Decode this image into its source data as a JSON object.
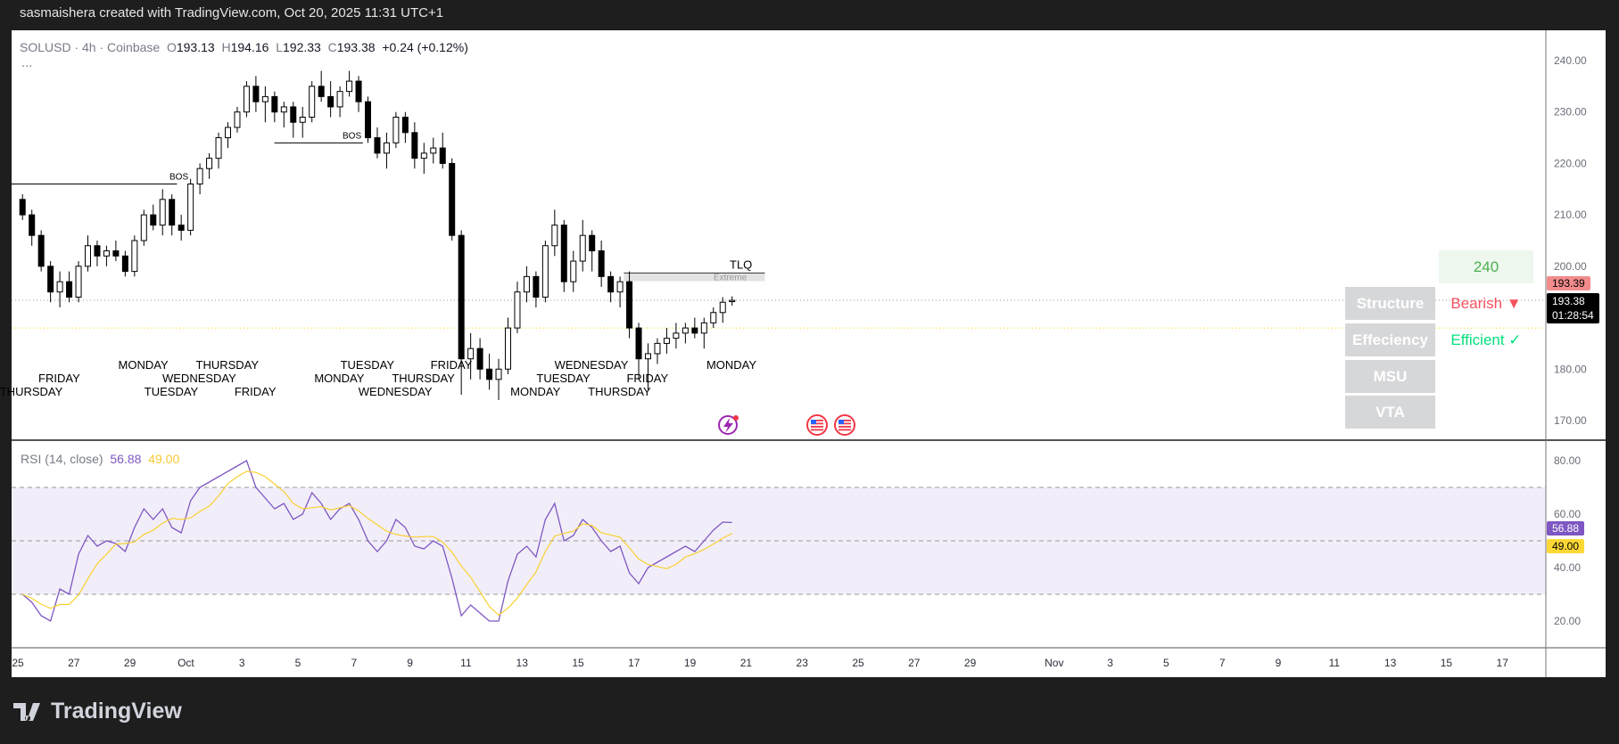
{
  "header": {
    "attribution": "sasmaishera created with TradingView.com, Oct 20, 2025 11:31 UTC+1"
  },
  "legend": {
    "symbol": "SOLUSD · 4h · Coinbase",
    "o_label": "O",
    "o": "193.13",
    "h_label": "H",
    "h": "194.16",
    "l_label": "L",
    "l": "192.33",
    "c_label": "C",
    "c": "193.38",
    "change": "+0.24 (+0.12%)",
    "more": "..."
  },
  "rsi": {
    "label": "RSI (14, close)",
    "value": "56.88",
    "ma_value": "49.00",
    "color": "#7e57c2",
    "ma_color": "#f9d030"
  },
  "annotations": {
    "bos1": "BOS",
    "bos2": "BOS",
    "tlq": "TLQ",
    "extreme": "Extreme"
  },
  "table": {
    "tf": "240",
    "rows": [
      {
        "label": "Structure",
        "value": "Bearish ▼",
        "color": "#f7525f"
      },
      {
        "label": "Effeciency",
        "value": "Efficient ✓",
        "color": "#00e07a"
      },
      {
        "label": "MSU",
        "value": ""
      },
      {
        "label": "VTA",
        "value": ""
      }
    ]
  },
  "price_axis": {
    "ticks": [
      "240.00",
      "230.00",
      "220.00",
      "210.00",
      "200.00",
      "180.00",
      "170.00"
    ],
    "high_badge": "193.39",
    "last_price": "193.38",
    "countdown": "01:28:54"
  },
  "rsi_axis": {
    "ticks": [
      "80.00",
      "60.00",
      "40.00",
      "20.00"
    ]
  },
  "icons": [
    "lightning-event-icon",
    "us-flag-icon",
    "us-flag-icon"
  ],
  "brand": {
    "name": "TradingView"
  },
  "weekday_labels": [
    {
      "text": "THURSDAY",
      "date": "2025-09-25"
    },
    {
      "text": "FRIDAY",
      "date": "2025-09-26"
    },
    {
      "text": "MONDAY",
      "date": "2025-09-29"
    },
    {
      "text": "TUESDAY",
      "date": "2025-09-30"
    },
    {
      "text": "WEDNESDAY",
      "date": "2025-10-01"
    },
    {
      "text": "THURSDAY",
      "date": "2025-10-02"
    },
    {
      "text": "FRIDAY",
      "date": "2025-10-03"
    },
    {
      "text": "MONDAY",
      "date": "2025-10-06"
    },
    {
      "text": "TUESDAY",
      "date": "2025-10-07"
    },
    {
      "text": "WEDNESDAY",
      "date": "2025-10-08"
    },
    {
      "text": "THURSDAY",
      "date": "2025-10-09"
    },
    {
      "text": "FRIDAY",
      "date": "2025-10-10"
    },
    {
      "text": "MONDAY",
      "date": "2025-10-13"
    },
    {
      "text": "TUESDAY",
      "date": "2025-10-14"
    },
    {
      "text": "WEDNESDAY",
      "date": "2025-10-15"
    },
    {
      "text": "THURSDAY",
      "date": "2025-10-16"
    },
    {
      "text": "FRIDAY",
      "date": "2025-10-17"
    },
    {
      "text": "MONDAY",
      "date": "2025-10-20"
    }
  ],
  "chart_data": {
    "type": "candlestick",
    "x_ticks": [
      {
        "label": "25",
        "date": "2025-09-25"
      },
      {
        "label": "27",
        "date": "2025-09-27"
      },
      {
        "label": "29",
        "date": "2025-09-29"
      },
      {
        "label": "Oct",
        "date": "2025-10-01"
      },
      {
        "label": "3",
        "date": "2025-10-03"
      },
      {
        "label": "5",
        "date": "2025-10-05"
      },
      {
        "label": "7",
        "date": "2025-10-07"
      },
      {
        "label": "9",
        "date": "2025-10-09"
      },
      {
        "label": "11",
        "date": "2025-10-11"
      },
      {
        "label": "13",
        "date": "2025-10-13"
      },
      {
        "label": "15",
        "date": "2025-10-15"
      },
      {
        "label": "17",
        "date": "2025-10-17"
      },
      {
        "label": "19",
        "date": "2025-10-19"
      },
      {
        "label": "21",
        "date": "2025-10-21"
      },
      {
        "label": "23",
        "date": "2025-10-23"
      },
      {
        "label": "25",
        "date": "2025-10-25"
      },
      {
        "label": "27",
        "date": "2025-10-27"
      },
      {
        "label": "29",
        "date": "2025-10-29"
      },
      {
        "label": "Nov",
        "date": "2025-11-01"
      },
      {
        "label": "3",
        "date": "2025-11-03"
      },
      {
        "label": "5",
        "date": "2025-11-05"
      },
      {
        "label": "7",
        "date": "2025-11-07"
      },
      {
        "label": "9",
        "date": "2025-11-09"
      },
      {
        "label": "11",
        "date": "2025-11-11"
      },
      {
        "label": "13",
        "date": "2025-11-13"
      },
      {
        "label": "15",
        "date": "2025-11-15"
      },
      {
        "label": "17",
        "date": "2025-11-17"
      }
    ],
    "start": "2025-09-25",
    "candles_per_day": 3,
    "ylim": [
      170,
      240
    ],
    "ohlc": [
      [
        213,
        214,
        209,
        210
      ],
      [
        210,
        211,
        204,
        206
      ],
      [
        206,
        207,
        199,
        200
      ],
      [
        200,
        201,
        193,
        195
      ],
      [
        195,
        199,
        192,
        197
      ],
      [
        197,
        199,
        193,
        194
      ],
      [
        194,
        201,
        193,
        200
      ],
      [
        200,
        206,
        199,
        204
      ],
      [
        204,
        205,
        200,
        202
      ],
      [
        202,
        204,
        200,
        203
      ],
      [
        203,
        205,
        201,
        202
      ],
      [
        202,
        203,
        198,
        199
      ],
      [
        199,
        206,
        198,
        205
      ],
      [
        205,
        211,
        204,
        210
      ],
      [
        210,
        212,
        207,
        208
      ],
      [
        208,
        215,
        206,
        213
      ],
      [
        213,
        214,
        206,
        208
      ],
      [
        208,
        210,
        205,
        207
      ],
      [
        207,
        217,
        206,
        216
      ],
      [
        216,
        220,
        214,
        219
      ],
      [
        219,
        222,
        217,
        221
      ],
      [
        221,
        226,
        219,
        225
      ],
      [
        225,
        228,
        223,
        227
      ],
      [
        227,
        231,
        226,
        230
      ],
      [
        230,
        236,
        229,
        235
      ],
      [
        235,
        237,
        230,
        232
      ],
      [
        232,
        235,
        228,
        233
      ],
      [
        233,
        234,
        228,
        230
      ],
      [
        230,
        232,
        227,
        231
      ],
      [
        231,
        232,
        225,
        228
      ],
      [
        228,
        231,
        225,
        229
      ],
      [
        229,
        236,
        228,
        235
      ],
      [
        235,
        238,
        232,
        233
      ],
      [
        233,
        236,
        229,
        231
      ],
      [
        231,
        235,
        229,
        234
      ],
      [
        234,
        238,
        233,
        236
      ],
      [
        236,
        237,
        230,
        232
      ],
      [
        232,
        233,
        224,
        225
      ],
      [
        225,
        227,
        221,
        222
      ],
      [
        222,
        226,
        219,
        224
      ],
      [
        224,
        230,
        223,
        229
      ],
      [
        229,
        230,
        224,
        226
      ],
      [
        226,
        228,
        219,
        221
      ],
      [
        221,
        224,
        218,
        222
      ],
      [
        222,
        225,
        220,
        223
      ],
      [
        223,
        226,
        219,
        220
      ],
      [
        220,
        221,
        205,
        206
      ],
      [
        206,
        207,
        175,
        182
      ],
      [
        182,
        187,
        178,
        184
      ],
      [
        184,
        186,
        178,
        180
      ],
      [
        180,
        183,
        176,
        178
      ],
      [
        178,
        182,
        174,
        180
      ],
      [
        180,
        190,
        179,
        188
      ],
      [
        188,
        197,
        187,
        195
      ],
      [
        195,
        200,
        193,
        198
      ],
      [
        198,
        199,
        192,
        194
      ],
      [
        194,
        205,
        193,
        204
      ],
      [
        204,
        211,
        202,
        208
      ],
      [
        208,
        209,
        195,
        197
      ],
      [
        197,
        203,
        195,
        201
      ],
      [
        201,
        209,
        199,
        206
      ],
      [
        206,
        207,
        199,
        203
      ],
      [
        203,
        205,
        196,
        198
      ],
      [
        198,
        199,
        193,
        195
      ],
      [
        195,
        198,
        192,
        197
      ],
      [
        197,
        199,
        186,
        188
      ],
      [
        188,
        189,
        178,
        182
      ],
      [
        182,
        185,
        176,
        183
      ],
      [
        183,
        186,
        181,
        185
      ],
      [
        185,
        188,
        183,
        186
      ],
      [
        186,
        189,
        184,
        187
      ],
      [
        187,
        189,
        185,
        188
      ],
      [
        188,
        190,
        186,
        187
      ],
      [
        187,
        190,
        184,
        189
      ],
      [
        189,
        192,
        188,
        191
      ],
      [
        191,
        194,
        189,
        193
      ],
      [
        193.13,
        194.16,
        192.33,
        193.38
      ]
    ],
    "levels": {
      "bos1": 216,
      "bos2": 224,
      "extreme_zone": [
        197.1,
        198.7
      ],
      "last_price": 193.38,
      "equilibrium": 188
    },
    "rsi": {
      "ylim": [
        10,
        85
      ],
      "bands": [
        70,
        50,
        30
      ],
      "values": [
        30,
        27,
        22,
        20,
        32,
        30,
        45,
        52,
        48,
        50,
        49,
        46,
        55,
        62,
        58,
        62,
        55,
        53,
        65,
        70,
        72,
        74,
        76,
        78,
        80,
        70,
        66,
        62,
        64,
        58,
        60,
        68,
        64,
        58,
        62,
        64,
        58,
        50,
        46,
        50,
        58,
        55,
        48,
        47,
        50,
        48,
        36,
        22,
        26,
        23,
        20,
        20,
        35,
        45,
        48,
        44,
        58,
        64,
        50,
        52,
        58,
        55,
        50,
        46,
        48,
        38,
        34,
        40,
        42,
        44,
        46,
        48,
        46,
        50,
        54,
        57,
        56.88
      ]
    }
  }
}
